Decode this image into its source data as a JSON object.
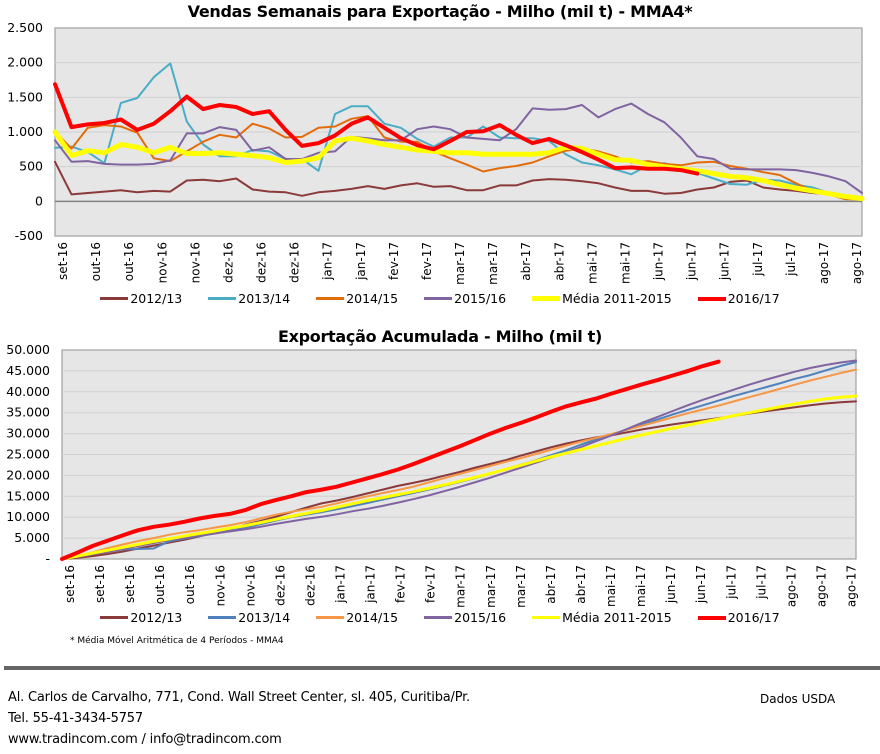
{
  "chart_data": [
    {
      "type": "line",
      "title": "Vendas Semanais para Exportação - Milho (mil t) - MMA4*",
      "xlabel": "",
      "ylabel": "",
      "ylim": [
        -500,
        2500
      ],
      "yticks": [
        "2.500",
        "2.000",
        "1.500",
        "1.000",
        "500",
        "0",
        "-500"
      ],
      "ytick_values": [
        2500,
        2000,
        1500,
        1000,
        500,
        0,
        -500
      ],
      "grid": true,
      "legend_position": "bottom",
      "tick_labels": [
        "set-16",
        "out-16",
        "out-16",
        "nov-16",
        "nov-16",
        "dez-16",
        "dez-16",
        "dez-16",
        "jan-17",
        "jan-17",
        "fev-17",
        "fev-17",
        "mar-17",
        "mar-17",
        "abr-17",
        "abr-17",
        "mai-17",
        "mai-17",
        "jun-17",
        "jun-17",
        "jun-17",
        "jul-17",
        "jul-17",
        "ago-17",
        "ago-17"
      ],
      "n_weeks": 50,
      "series": [
        {
          "name": "2012/13",
          "color": "#8B3A3A",
          "width": 2,
          "values": [
            570,
            100,
            120,
            140,
            160,
            130,
            150,
            140,
            300,
            310,
            290,
            330,
            170,
            140,
            130,
            80,
            130,
            150,
            180,
            220,
            180,
            230,
            260,
            210,
            220,
            160,
            160,
            230,
            230,
            300,
            320,
            310,
            290,
            260,
            200,
            150,
            150,
            110,
            120,
            170,
            200,
            280,
            300,
            200,
            170,
            150,
            120,
            100,
            40,
            30
          ]
        },
        {
          "name": "2013/14",
          "color": "#4BACC6",
          "width": 2,
          "values": [
            770,
            790,
            710,
            550,
            1420,
            1490,
            1790,
            1990,
            1150,
            820,
            650,
            650,
            740,
            720,
            610,
            610,
            440,
            1260,
            1370,
            1370,
            1120,
            1060,
            900,
            790,
            920,
            920,
            1080,
            920,
            910,
            910,
            870,
            680,
            560,
            520,
            460,
            390,
            520,
            550,
            490,
            410,
            330,
            250,
            240,
            310,
            300,
            240,
            200,
            120,
            70,
            20
          ]
        },
        {
          "name": "2014/15",
          "color": "#E36C0A",
          "width": 2,
          "values": [
            1000,
            760,
            1060,
            1100,
            1080,
            990,
            620,
            580,
            720,
            860,
            960,
            920,
            1120,
            1050,
            920,
            930,
            1060,
            1080,
            1190,
            1230,
            920,
            860,
            860,
            720,
            620,
            530,
            430,
            480,
            510,
            560,
            650,
            730,
            760,
            720,
            650,
            560,
            580,
            540,
            520,
            560,
            570,
            510,
            470,
            420,
            380,
            260,
            150,
            100,
            30,
            30
          ]
        },
        {
          "name": "2015/16",
          "color": "#8064A2",
          "width": 2,
          "values": [
            880,
            570,
            580,
            540,
            530,
            530,
            540,
            590,
            980,
            980,
            1070,
            1030,
            730,
            780,
            610,
            610,
            700,
            720,
            930,
            910,
            880,
            880,
            1040,
            1080,
            1040,
            920,
            900,
            880,
            1040,
            1340,
            1320,
            1330,
            1390,
            1210,
            1330,
            1410,
            1260,
            1140,
            920,
            650,
            610,
            470,
            460,
            460,
            460,
            450,
            410,
            360,
            290,
            120
          ]
        },
        {
          "name": "Média 2011-2015",
          "color": "#FFFF00",
          "width": 5,
          "values": [
            1000,
            660,
            730,
            700,
            820,
            780,
            700,
            780,
            690,
            690,
            700,
            680,
            660,
            630,
            560,
            580,
            630,
            870,
            910,
            870,
            820,
            780,
            740,
            720,
            700,
            700,
            680,
            680,
            680,
            680,
            700,
            780,
            760,
            680,
            600,
            590,
            530,
            500,
            470,
            440,
            400,
            360,
            340,
            300,
            240,
            190,
            150,
            110,
            70,
            40
          ]
        },
        {
          "name": "2016/17",
          "color": "#FF0000",
          "width": 4,
          "values": [
            1690,
            1070,
            1110,
            1130,
            1180,
            1030,
            1120,
            1300,
            1510,
            1330,
            1390,
            1360,
            1260,
            1300,
            1030,
            800,
            840,
            950,
            1120,
            1210,
            1060,
            910,
            810,
            750,
            870,
            1000,
            1010,
            1100,
            960,
            840,
            900,
            810,
            710,
            600,
            480,
            490,
            470,
            470,
            450,
            400,
            null,
            null,
            null,
            null,
            null,
            null,
            null,
            null,
            null,
            null
          ]
        }
      ]
    },
    {
      "type": "line",
      "title": "Exportação Acumulada - Milho (mil t)",
      "xlabel": "",
      "ylabel": "",
      "ylim": [
        0,
        50000
      ],
      "yticks": [
        "50.000",
        "45.000",
        "40.000",
        "35.000",
        "30.000",
        "25.000",
        "20.000",
        "15.000",
        "10.000",
        "5.000",
        "-"
      ],
      "ytick_values": [
        50000,
        45000,
        40000,
        35000,
        30000,
        25000,
        20000,
        15000,
        10000,
        5000,
        0
      ],
      "grid": true,
      "legend_position": "bottom",
      "tick_labels": [
        "set-16",
        "set-16",
        "set-16",
        "out-16",
        "out-16",
        "nov-16",
        "nov-16",
        "dez-16",
        "dez-16",
        "jan-17",
        "jan-17",
        "fev-17",
        "fev-17",
        "mar-17",
        "mar-17",
        "mar-17",
        "abr-17",
        "abr-17",
        "mai-17",
        "mai-17",
        "jun-17",
        "jun-17",
        "jul-17",
        "jul-17",
        "ago-17",
        "ago-17",
        "ago-17"
      ],
      "n_weeks": 53,
      "series": [
        {
          "name": "2012/13",
          "color": "#8B3A3A",
          "width": 2,
          "values": [
            0,
            300,
            700,
            1200,
            1800,
            2500,
            3200,
            3900,
            4600,
            5400,
            6300,
            7200,
            8200,
            9100,
            10100,
            11200,
            12300,
            13300,
            14000,
            14800,
            15700,
            16600,
            17500,
            18200,
            19000,
            19900,
            20800,
            21800,
            22700,
            23600,
            24700,
            25700,
            26700,
            27600,
            28400,
            29100,
            29600,
            30300,
            31000,
            31600,
            32200,
            32700,
            33200,
            33700,
            34200,
            34800,
            35300,
            35800,
            36300,
            36800,
            37200,
            37500,
            37700
          ]
        },
        {
          "name": "2013/14",
          "color": "#4F81BD",
          "width": 2,
          "values": [
            0,
            600,
            1200,
            1800,
            2300,
            2400,
            2500,
            4200,
            4900,
            5500,
            6100,
            6800,
            7500,
            8300,
            9200,
            10000,
            10600,
            11200,
            11900,
            12600,
            13400,
            14200,
            15000,
            15800,
            16600,
            17500,
            18400,
            19300,
            20300,
            21400,
            22500,
            23600,
            24800,
            26000,
            27400,
            28600,
            29800,
            31000,
            32200,
            33400,
            34600,
            35700,
            36800,
            37900,
            39000,
            40000,
            41000,
            42000,
            43100,
            44000,
            45100,
            46200,
            47100
          ]
        },
        {
          "name": "2014/15",
          "color": "#F79646",
          "width": 2,
          "values": [
            0,
            800,
            1600,
            2600,
            3500,
            4300,
            5000,
            5800,
            6400,
            6900,
            7500,
            8100,
            8800,
            9700,
            10600,
            11300,
            11900,
            12500,
            13300,
            14200,
            15000,
            15800,
            16500,
            17300,
            18300,
            19300,
            20300,
            21300,
            22200,
            23200,
            24100,
            25100,
            26100,
            27100,
            28100,
            29000,
            29900,
            30900,
            31900,
            32900,
            33900,
            34900,
            35800,
            36700,
            37700,
            38700,
            39700,
            40700,
            41700,
            42700,
            43600,
            44500,
            45300
          ]
        },
        {
          "name": "2015/16",
          "color": "#8064A2",
          "width": 2,
          "values": [
            0,
            500,
            1100,
            1700,
            2400,
            3100,
            3800,
            4500,
            5100,
            5600,
            6100,
            6600,
            7100,
            7700,
            8400,
            9000,
            9600,
            10100,
            10700,
            11400,
            12000,
            12700,
            13500,
            14300,
            15200,
            16200,
            17200,
            18300,
            19400,
            20600,
            21800,
            23000,
            24200,
            25500,
            26800,
            28200,
            29600,
            31100,
            32600,
            34000,
            35400,
            36800,
            38100,
            39300,
            40500,
            41700,
            42800,
            43800,
            44800,
            45700,
            46400,
            47000,
            47500
          ]
        },
        {
          "name": "Média 2011-2015",
          "color": "#FFFF00",
          "width": 3,
          "values": [
            0,
            700,
            1400,
            2100,
            2800,
            3500,
            4200,
            4800,
            5500,
            6100,
            6700,
            7400,
            8000,
            8700,
            9500,
            10200,
            10900,
            11600,
            12400,
            13200,
            14000,
            14700,
            15400,
            16100,
            16900,
            17700,
            18600,
            19500,
            20400,
            21400,
            22400,
            23400,
            24400,
            25300,
            26200,
            27100,
            28000,
            28900,
            29700,
            30500,
            31300,
            32000,
            32800,
            33500,
            34300,
            35000,
            35700,
            36400,
            37100,
            37700,
            38300,
            38700,
            39000
          ]
        },
        {
          "name": "2016/17",
          "color": "#FF0000",
          "width": 4,
          "values": [
            0,
            1500,
            3100,
            4400,
            5700,
            6900,
            7700,
            8200,
            8900,
            9700,
            10300,
            10800,
            11700,
            13100,
            14100,
            15000,
            16000,
            16600,
            17300,
            18300,
            19300,
            20300,
            21400,
            22700,
            24100,
            25500,
            26900,
            28400,
            29900,
            31300,
            32500,
            33800,
            35200,
            36500,
            37500,
            38400,
            39600,
            40700,
            41800,
            42800,
            43900,
            45000,
            46200,
            47200,
            null,
            null,
            null,
            null,
            null,
            null,
            null,
            null,
            null
          ]
        }
      ]
    }
  ],
  "charts": {
    "chart1": {
      "title": "Vendas Semanais para Exportação - Milho (mil t) - MMA4*",
      "legend": [
        "2012/13",
        "2013/14",
        "2014/15",
        "2015/16",
        "Média 2011-2015",
        "2016/17"
      ]
    },
    "chart2": {
      "title": "Exportação Acumulada - Milho (mil t)",
      "legend": [
        "2012/13",
        "2013/14",
        "2014/15",
        "2015/16",
        "Média 2011-2015",
        "2016/17"
      ]
    }
  },
  "footnote": "* Média Móvel Aritmética de 4 Períodos - MMA4",
  "footer": {
    "address": "Al. Carlos de Carvalho, 771, Cond. Wall Street Center, sl. 405, Curitiba/Pr.",
    "phone": "Tel. 55-41-3434-5757",
    "contact": "www.tradincom.com / info@tradincom.com",
    "source": "Dados USDA"
  },
  "colors": {
    "plot_background": "#E6E6E6",
    "gridline": "#D0D0D0",
    "plot_border": "#A0A0A0",
    "zero_line": "#808080"
  }
}
